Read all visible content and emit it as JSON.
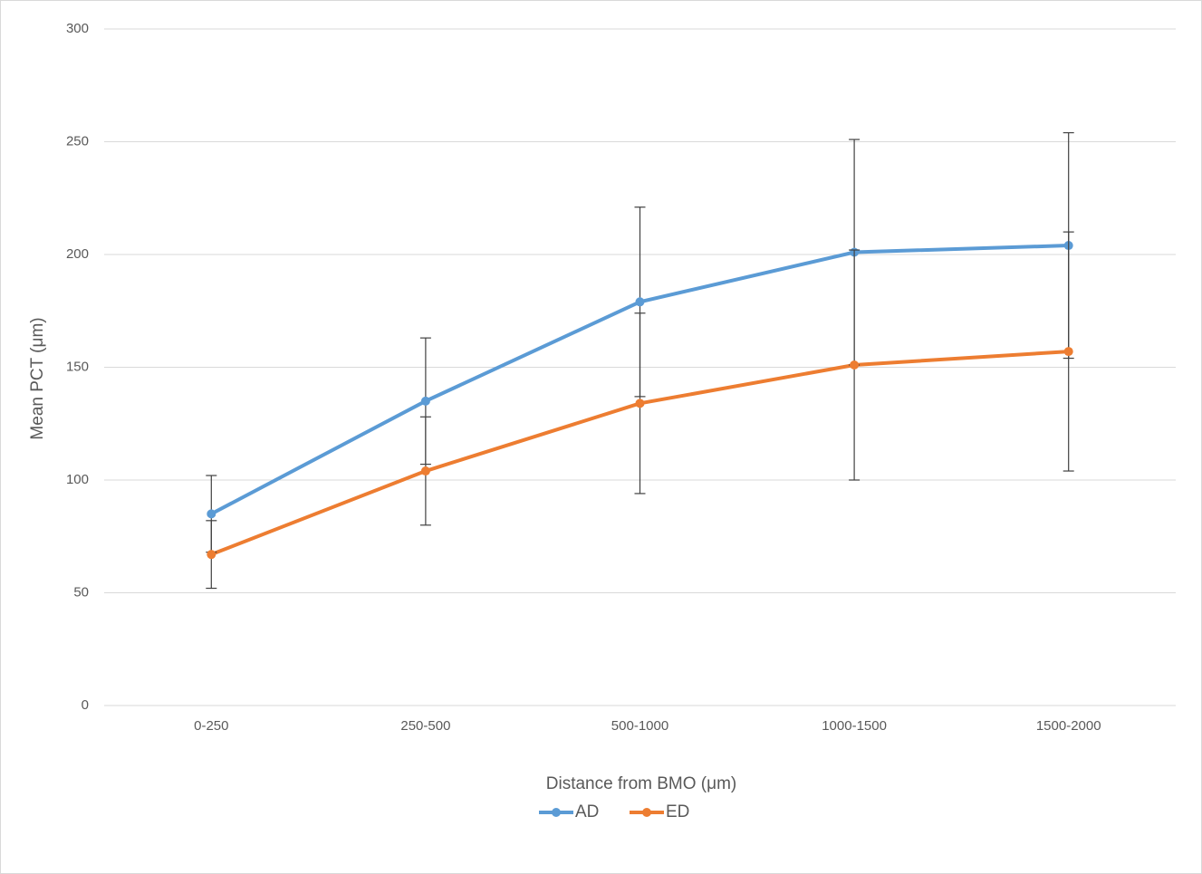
{
  "chart_data": {
    "type": "line",
    "x_label": "Distance from BMO (μm)",
    "y_label": "Mean PCT (μm)",
    "categories": [
      "0-250",
      "250-500",
      "500-1000",
      "1000-1500",
      "1500-2000"
    ],
    "series": [
      {
        "name": "AD",
        "color": "#5b9bd5",
        "values": [
          85,
          135,
          179,
          201,
          204
        ],
        "errors": [
          17,
          28,
          42,
          50,
          50
        ]
      },
      {
        "name": "ED",
        "color": "#ed7d31",
        "values": [
          67,
          104,
          134,
          151,
          157
        ],
        "errors": [
          15,
          24,
          40,
          51,
          53
        ]
      }
    ],
    "ylim": [
      0,
      300
    ],
    "yticks": [
      0,
      50,
      100,
      150,
      200,
      250,
      300
    ],
    "grid": true,
    "legend": "bottom"
  }
}
